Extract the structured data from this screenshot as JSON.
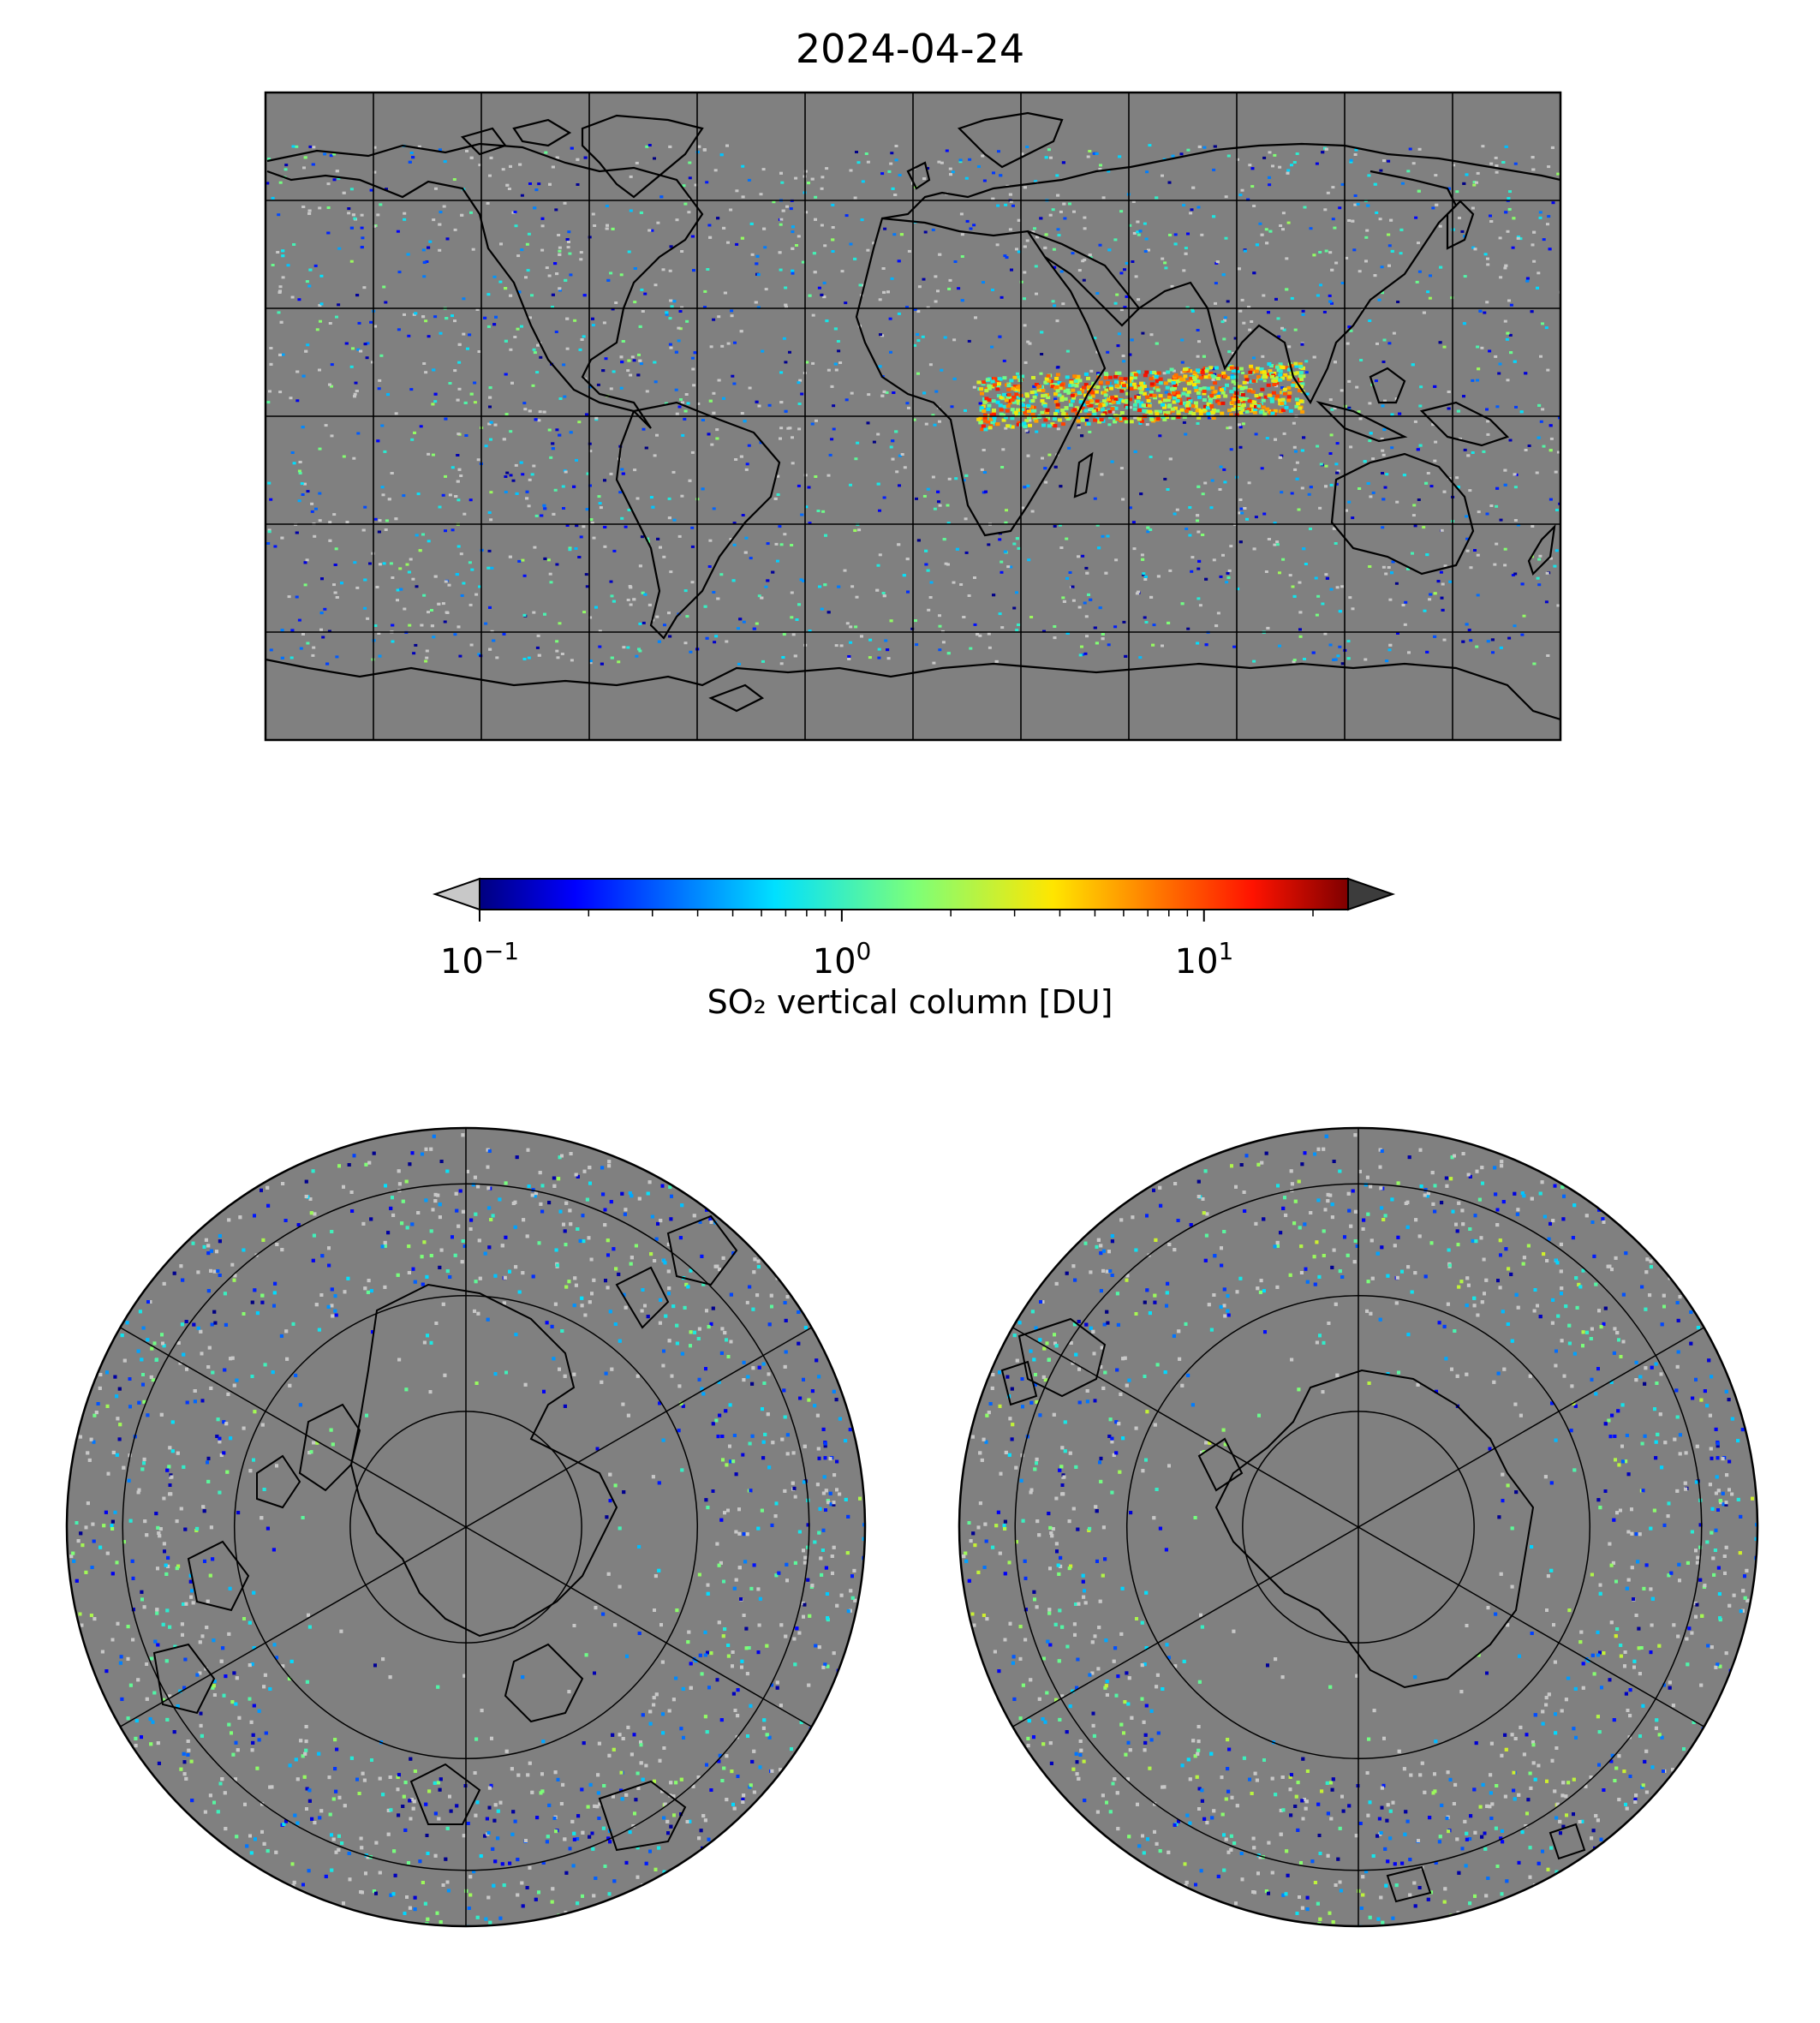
{
  "title": "2024-04-24",
  "colorbar": {
    "label": "SO₂ vertical column [DU]",
    "scale": "log",
    "range": [
      0.1,
      25
    ],
    "ticks": [
      {
        "value": 0.1,
        "base": "10",
        "exp": "−1"
      },
      {
        "value": 1,
        "base": "10",
        "exp": "0"
      },
      {
        "value": 10,
        "base": "10",
        "exp": "1"
      }
    ],
    "extend": "both",
    "under_color": "#c8c8c8",
    "over_color": "#3c3c3c",
    "colormap": "jet"
  },
  "maps": [
    {
      "id": "global",
      "projection": "equirectangular",
      "background": "#808080",
      "lon_range": [
        -180,
        180
      ],
      "lat_range": [
        -90,
        90
      ]
    },
    {
      "id": "north-polar",
      "projection": "north-polar-stereographic",
      "background": "#808080"
    },
    {
      "id": "south-polar",
      "projection": "south-polar-stereographic",
      "background": "#808080"
    }
  ]
}
